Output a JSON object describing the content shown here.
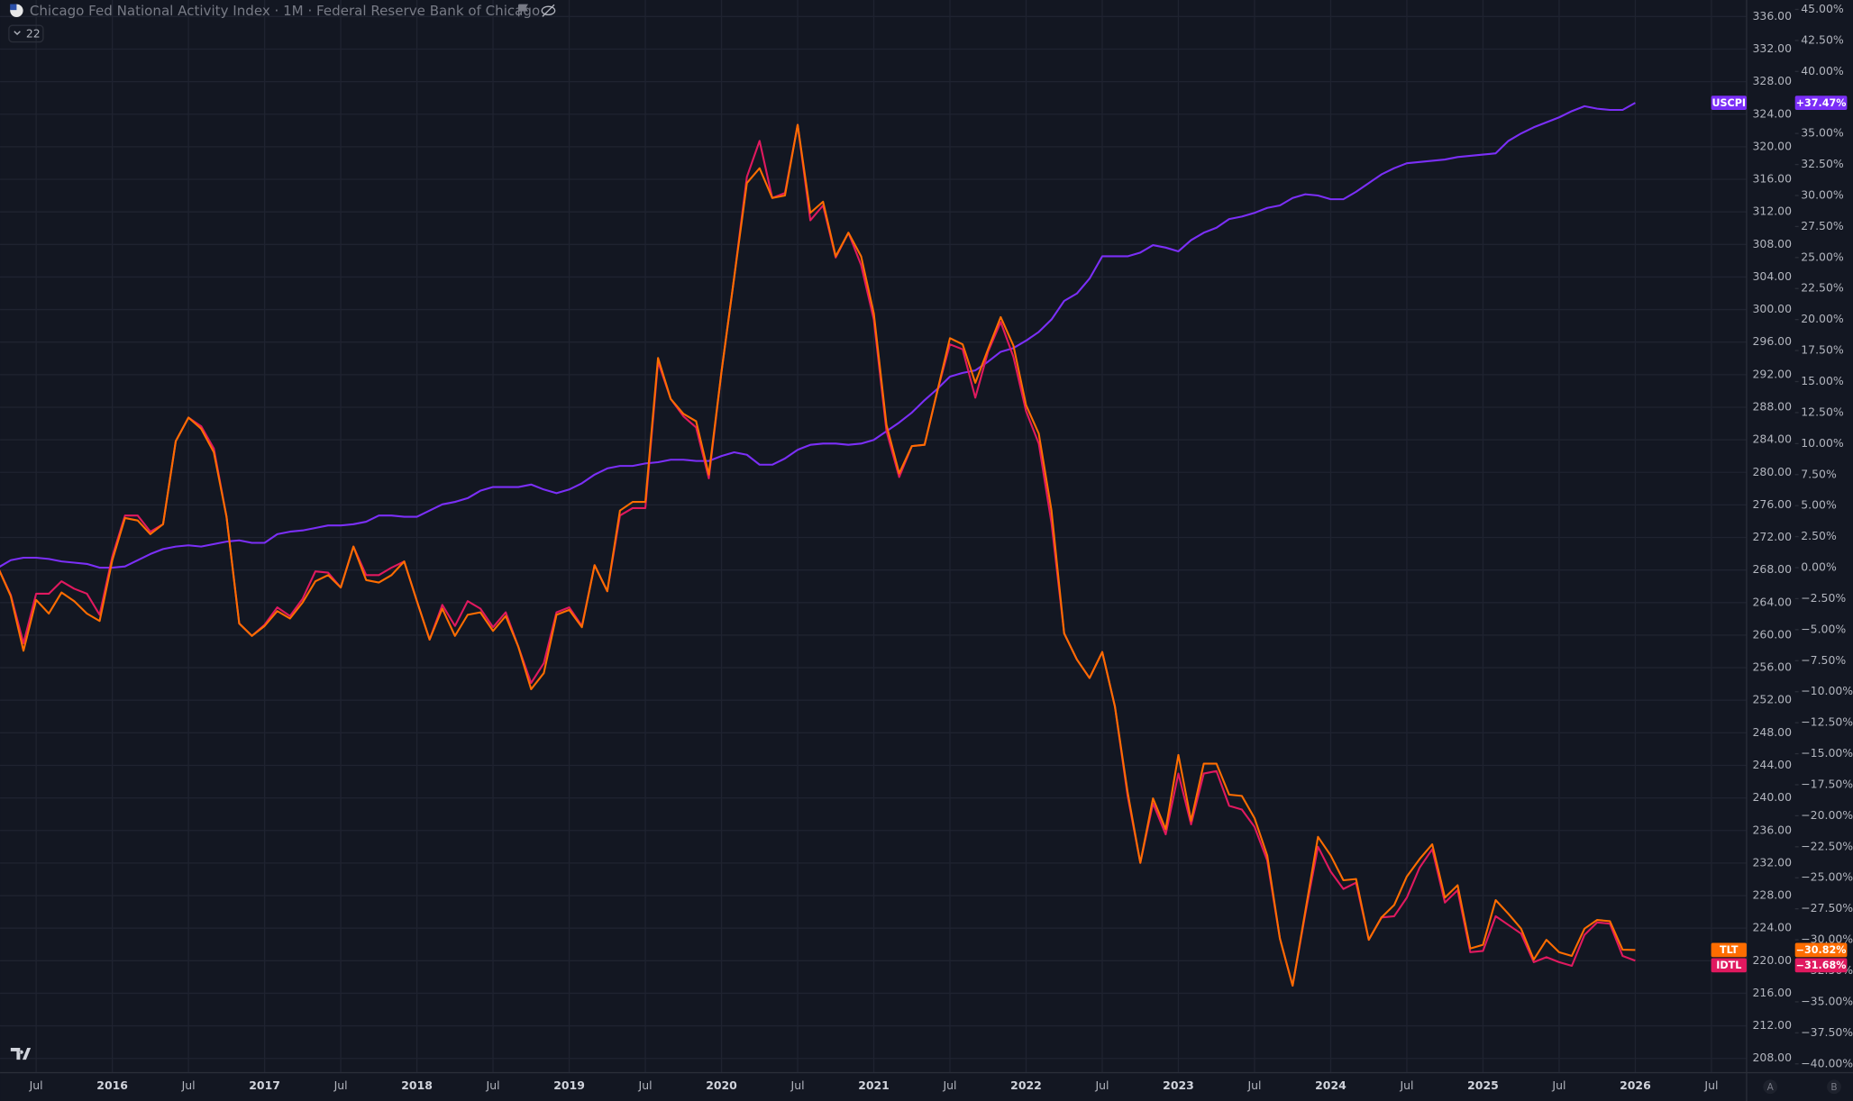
{
  "chart_data": {
    "type": "line",
    "title": "Chicago Fed National Activity Index · 1M · Federal Reserve Bank of Chicago",
    "badge": "22",
    "corner_buttons": [
      "A",
      "B"
    ],
    "x": [
      "2015-04",
      "2015-05",
      "2015-06",
      "2015-07",
      "2015-08",
      "2015-09",
      "2015-10",
      "2015-11",
      "2015-12",
      "2016-01",
      "2016-02",
      "2016-03",
      "2016-04",
      "2016-05",
      "2016-06",
      "2016-07",
      "2016-08",
      "2016-09",
      "2016-10",
      "2016-11",
      "2016-12",
      "2017-01",
      "2017-02",
      "2017-03",
      "2017-04",
      "2017-05",
      "2017-06",
      "2017-07",
      "2017-08",
      "2017-09",
      "2017-10",
      "2017-11",
      "2017-12",
      "2018-01",
      "2018-02",
      "2018-03",
      "2018-04",
      "2018-05",
      "2018-06",
      "2018-07",
      "2018-08",
      "2018-09",
      "2018-10",
      "2018-11",
      "2018-12",
      "2019-01",
      "2019-02",
      "2019-03",
      "2019-04",
      "2019-05",
      "2019-06",
      "2019-07",
      "2019-08",
      "2019-09",
      "2019-10",
      "2019-11",
      "2019-12",
      "2020-01",
      "2020-02",
      "2020-03",
      "2020-04",
      "2020-05",
      "2020-06",
      "2020-07",
      "2020-08",
      "2020-09",
      "2020-10",
      "2020-11",
      "2020-12",
      "2021-01",
      "2021-02",
      "2021-03",
      "2021-04",
      "2021-05",
      "2021-06",
      "2021-07",
      "2021-08",
      "2021-09",
      "2021-10",
      "2021-11",
      "2021-12",
      "2022-01",
      "2022-02",
      "2022-03",
      "2022-04",
      "2022-05",
      "2022-06",
      "2022-07",
      "2022-08",
      "2022-09",
      "2022-10",
      "2022-11",
      "2022-12",
      "2023-01",
      "2023-02",
      "2023-03",
      "2023-04",
      "2023-05",
      "2023-06",
      "2023-07",
      "2023-08",
      "2023-09",
      "2023-10",
      "2023-11",
      "2023-12",
      "2024-01",
      "2024-02",
      "2024-03",
      "2024-04",
      "2024-05",
      "2024-06",
      "2024-07",
      "2024-08",
      "2024-09",
      "2024-10",
      "2024-11",
      "2024-12",
      "2025-01",
      "2025-02",
      "2025-03",
      "2025-04",
      "2025-05",
      "2025-06",
      "2025-07",
      "2025-08",
      "2025-09",
      "2025-10",
      "2025-11",
      "2025-12",
      "2026-01"
    ],
    "series": [
      {
        "name": "USCPI",
        "color": "#7b2ff7",
        "last_value_label": "+37.47%",
        "values": [
          0.0,
          0.6,
          0.8,
          0.8,
          0.7,
          0.5,
          0.4,
          0.3,
          0.0,
          0.0,
          0.1,
          0.6,
          1.1,
          1.5,
          1.7,
          1.8,
          1.7,
          1.9,
          2.1,
          2.2,
          2.0,
          2.0,
          2.7,
          2.9,
          3.0,
          3.2,
          3.4,
          3.4,
          3.5,
          3.7,
          4.2,
          4.2,
          4.1,
          4.1,
          4.6,
          5.1,
          5.3,
          5.6,
          6.2,
          6.5,
          6.5,
          6.5,
          6.7,
          6.3,
          6.0,
          6.3,
          6.8,
          7.5,
          8.0,
          8.2,
          8.2,
          8.4,
          8.5,
          8.7,
          8.7,
          8.6,
          8.6,
          9.0,
          9.3,
          9.1,
          8.3,
          8.3,
          8.8,
          9.5,
          9.9,
          10.0,
          10.0,
          9.9,
          10.0,
          10.3,
          11.0,
          11.7,
          12.5,
          13.5,
          14.4,
          15.4,
          15.7,
          15.9,
          16.6,
          17.4,
          17.7,
          18.3,
          19.0,
          20.0,
          21.5,
          22.1,
          23.3,
          25.1,
          25.1,
          25.1,
          25.4,
          26.0,
          25.8,
          25.5,
          26.4,
          27.0,
          27.4,
          28.1,
          28.3,
          28.6,
          29.0,
          29.2,
          29.8,
          30.1,
          30.0,
          29.7,
          29.7,
          30.3,
          31.0,
          31.7,
          32.2,
          32.6,
          32.7,
          32.8,
          32.9,
          33.1,
          33.2,
          33.3,
          33.4,
          34.4,
          35.0,
          35.5,
          35.9,
          36.3,
          36.8,
          37.2,
          37.0,
          36.9,
          36.9,
          37.47
        ]
      },
      {
        "name": "IDTL",
        "color": "#e0195f",
        "last_value_label": "−31.68%",
        "values": [
          0.0,
          -2.2,
          -6.1,
          -2.1,
          -2.1,
          -1.1,
          -1.7,
          -2.1,
          -3.8,
          0.9,
          4.2,
          4.2,
          2.9,
          3.5,
          10.2,
          12.1,
          11.4,
          9.6,
          4.1,
          -4.5,
          -5.5,
          -4.6,
          -3.2,
          -3.9,
          -2.5,
          -0.3,
          -0.4,
          -1.6,
          1.7,
          -0.6,
          -0.6,
          0.0,
          0.5,
          -2.7,
          -5.8,
          -3.0,
          -4.7,
          -2.7,
          -3.3,
          -4.8,
          -3.6,
          -6.4,
          -9.3,
          -7.7,
          -3.6,
          -3.2,
          -4.7,
          0.2,
          -1.9,
          4.2,
          4.8,
          4.8,
          16.6,
          13.6,
          12.2,
          11.3,
          7.2,
          15.8,
          23.4,
          31.5,
          34.4,
          29.8,
          30.2,
          35.7,
          28.0,
          29.2,
          25.0,
          27.0,
          24.4,
          20.0,
          11.0,
          7.3,
          9.8,
          9.9,
          14.2,
          18.0,
          17.6,
          13.7,
          17.4,
          19.8,
          17.0,
          12.6,
          10.0,
          3.6,
          -5.3,
          -7.4,
          -8.9,
          -6.8,
          -11.2,
          -18.4,
          -23.8,
          -19.0,
          -21.5,
          -16.6,
          -20.7,
          -16.6,
          -16.4,
          -19.2,
          -19.5,
          -20.9,
          -23.6,
          -29.9,
          -33.7,
          -27.9,
          -22.5,
          -24.5,
          -25.9,
          -25.4,
          -30.0,
          -28.2,
          -28.1,
          -26.6,
          -24.2,
          -22.7,
          -27.0,
          -26.0,
          -31.0,
          -30.9,
          -28.1,
          -28.8,
          -29.5,
          -31.8,
          -31.4,
          -31.8,
          -32.1,
          -29.6,
          -28.6,
          -28.7,
          -31.3,
          -31.68
        ]
      },
      {
        "name": "TLT",
        "color": "#ff6d00",
        "last_value_label": "−30.82%",
        "values": [
          0.0,
          -2.3,
          -6.7,
          -2.6,
          -3.7,
          -2.0,
          -2.7,
          -3.7,
          -4.3,
          0.6,
          4.0,
          3.8,
          2.7,
          3.5,
          10.2,
          12.1,
          11.2,
          9.3,
          4.1,
          -4.5,
          -5.5,
          -4.7,
          -3.5,
          -4.1,
          -2.8,
          -1.1,
          -0.6,
          -1.6,
          1.7,
          -1.0,
          -1.2,
          -0.6,
          0.5,
          -2.7,
          -5.8,
          -3.3,
          -5.5,
          -3.8,
          -3.6,
          -5.1,
          -3.9,
          -6.4,
          -9.8,
          -8.5,
          -3.8,
          -3.4,
          -4.8,
          0.2,
          -1.9,
          4.6,
          5.3,
          5.3,
          16.9,
          13.6,
          12.4,
          11.8,
          7.5,
          15.8,
          23.4,
          31.0,
          32.2,
          29.8,
          30.0,
          35.7,
          28.6,
          29.5,
          25.1,
          27.0,
          25.1,
          20.5,
          11.5,
          7.6,
          9.8,
          9.9,
          14.2,
          18.5,
          18.0,
          14.9,
          17.6,
          20.2,
          17.9,
          13.1,
          10.8,
          4.6,
          -5.3,
          -7.4,
          -8.9,
          -6.8,
          -11.2,
          -18.1,
          -23.8,
          -18.6,
          -21.1,
          -15.1,
          -20.4,
          -15.8,
          -15.8,
          -18.3,
          -18.4,
          -20.2,
          -23.2,
          -29.9,
          -33.7,
          -27.7,
          -21.7,
          -23.2,
          -25.2,
          -25.1,
          -30.0,
          -28.2,
          -27.2,
          -24.9,
          -23.5,
          -22.3,
          -26.6,
          -25.6,
          -30.7,
          -30.4,
          -26.8,
          -27.9,
          -29.1,
          -31.6,
          -30.0,
          -31.0,
          -31.3,
          -29.1,
          -28.4,
          -28.5,
          -30.8,
          -30.82
        ]
      }
    ],
    "xticks": [
      {
        "value": "2015-07",
        "label": "Jul"
      },
      {
        "value": "2016-01",
        "label": "2016"
      },
      {
        "value": "2016-07",
        "label": "Jul"
      },
      {
        "value": "2017-01",
        "label": "2017"
      },
      {
        "value": "2017-07",
        "label": "Jul"
      },
      {
        "value": "2018-01",
        "label": "2018"
      },
      {
        "value": "2018-07",
        "label": "Jul"
      },
      {
        "value": "2019-01",
        "label": "2019"
      },
      {
        "value": "2019-07",
        "label": "Jul"
      },
      {
        "value": "2020-01",
        "label": "2020"
      },
      {
        "value": "2020-07",
        "label": "Jul"
      },
      {
        "value": "2021-01",
        "label": "2021"
      },
      {
        "value": "2021-07",
        "label": "Jul"
      },
      {
        "value": "2022-01",
        "label": "2022"
      },
      {
        "value": "2022-07",
        "label": "Jul"
      },
      {
        "value": "2023-01",
        "label": "2023"
      },
      {
        "value": "2023-07",
        "label": "Jul"
      },
      {
        "value": "2024-01",
        "label": "2024"
      },
      {
        "value": "2024-07",
        "label": "Jul"
      },
      {
        "value": "2025-01",
        "label": "2025"
      },
      {
        "value": "2025-07",
        "label": "Jul"
      },
      {
        "value": "2026-01",
        "label": "2026"
      },
      {
        "value": "2026-07",
        "label": "Jul"
      }
    ],
    "ylim": [
      -40.71,
      45.76
    ],
    "yticks": [
      {
        "value": 45,
        "label": "45.00%"
      },
      {
        "value": 42.5,
        "label": "42.50%"
      },
      {
        "value": 40,
        "label": "40.00%"
      },
      {
        "value": 37.5,
        "label": "37.50%"
      },
      {
        "value": 35,
        "label": "35.00%"
      },
      {
        "value": 32.5,
        "label": "32.50%"
      },
      {
        "value": 30,
        "label": "30.00%"
      },
      {
        "value": 27.5,
        "label": "27.50%"
      },
      {
        "value": 25,
        "label": "25.00%"
      },
      {
        "value": 22.5,
        "label": "22.50%"
      },
      {
        "value": 20,
        "label": "20.00%"
      },
      {
        "value": 17.5,
        "label": "17.50%"
      },
      {
        "value": 15,
        "label": "15.00%"
      },
      {
        "value": 12.5,
        "label": "12.50%"
      },
      {
        "value": 10,
        "label": "10.00%"
      },
      {
        "value": 7.5,
        "label": "7.50%"
      },
      {
        "value": 5,
        "label": "5.00%"
      },
      {
        "value": 2.5,
        "label": "2.50%"
      },
      {
        "value": 0,
        "label": "0.00%"
      },
      {
        "value": -2.5,
        "label": "−2.50%"
      },
      {
        "value": -5,
        "label": "−5.00%"
      },
      {
        "value": -7.5,
        "label": "−7.50%"
      },
      {
        "value": -10,
        "label": "−10.00%"
      },
      {
        "value": -12.5,
        "label": "−12.50%"
      },
      {
        "value": -15,
        "label": "−15.00%"
      },
      {
        "value": -17.5,
        "label": "−17.50%"
      },
      {
        "value": -20,
        "label": "−20.00%"
      },
      {
        "value": -22.5,
        "label": "−22.50%"
      },
      {
        "value": -25,
        "label": "−25.00%"
      },
      {
        "value": -27.5,
        "label": "−27.50%"
      },
      {
        "value": -30,
        "label": "−30.00%"
      },
      {
        "value": -32.5,
        "label": "−32.50%"
      },
      {
        "value": -35,
        "label": "−35.00%"
      },
      {
        "value": -37.5,
        "label": "−37.50%"
      },
      {
        "value": -40,
        "label": "−40.00%"
      }
    ],
    "y2lim": [
      206.25,
      338.03
    ],
    "y2ticks": [
      {
        "value": 336,
        "label": "336.00"
      },
      {
        "value": 332,
        "label": "332.00"
      },
      {
        "value": 328,
        "label": "328.00"
      },
      {
        "value": 324,
        "label": "324.00"
      },
      {
        "value": 320,
        "label": "320.00"
      },
      {
        "value": 316,
        "label": "316.00"
      },
      {
        "value": 312,
        "label": "312.00"
      },
      {
        "value": 308,
        "label": "308.00"
      },
      {
        "value": 304,
        "label": "304.00"
      },
      {
        "value": 300,
        "label": "300.00"
      },
      {
        "value": 296,
        "label": "296.00"
      },
      {
        "value": 292,
        "label": "292.00"
      },
      {
        "value": 288,
        "label": "288.00"
      },
      {
        "value": 284,
        "label": "284.00"
      },
      {
        "value": 280,
        "label": "280.00"
      },
      {
        "value": 276,
        "label": "276.00"
      },
      {
        "value": 272,
        "label": "272.00"
      },
      {
        "value": 268,
        "label": "268.00"
      },
      {
        "value": 264,
        "label": "264.00"
      },
      {
        "value": 260,
        "label": "260.00"
      },
      {
        "value": 256,
        "label": "256.00"
      },
      {
        "value": 252,
        "label": "252.00"
      },
      {
        "value": 248,
        "label": "248.00"
      },
      {
        "value": 244,
        "label": "244.00"
      },
      {
        "value": 240,
        "label": "240.00"
      },
      {
        "value": 236,
        "label": "236.00"
      },
      {
        "value": 232,
        "label": "232.00"
      },
      {
        "value": 228,
        "label": "228.00"
      },
      {
        "value": 224,
        "label": "224.00"
      },
      {
        "value": 220,
        "label": "220.00"
      },
      {
        "value": 216,
        "label": "216.00"
      },
      {
        "value": 212,
        "label": "212.00"
      },
      {
        "value": 208,
        "label": "208.00"
      }
    ],
    "grid": true
  }
}
